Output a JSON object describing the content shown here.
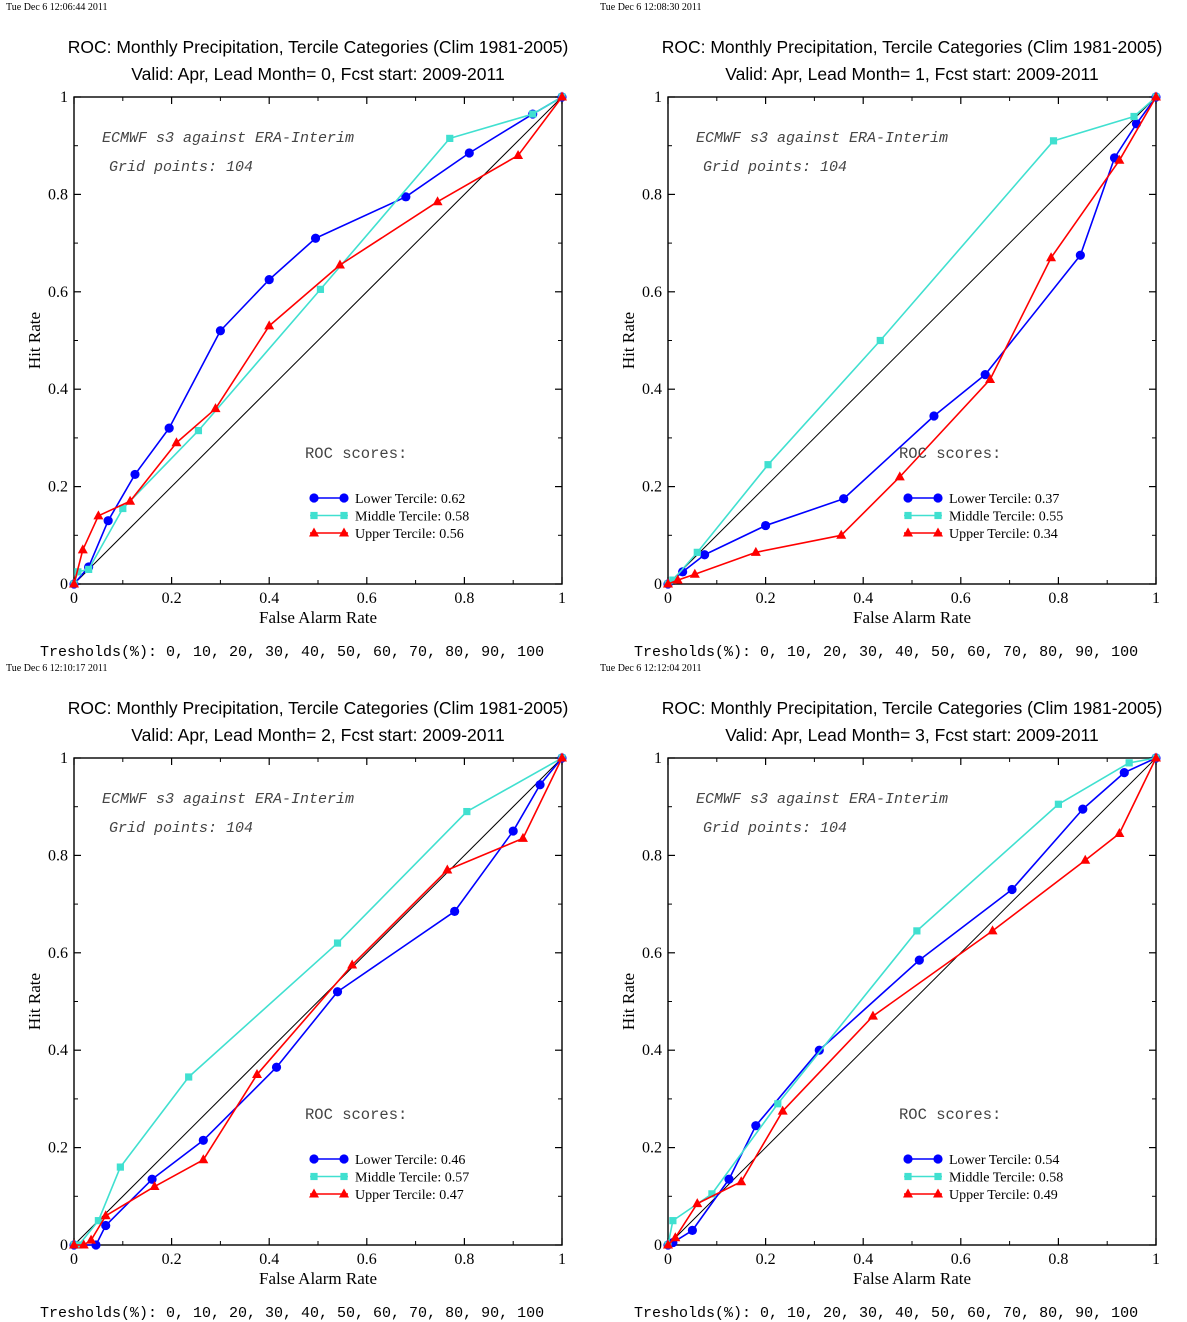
{
  "colors": {
    "lower": "#0000ff",
    "middle": "#40e0d0",
    "upper": "#ff0000",
    "diagonal": "#000000"
  },
  "chart_data": [
    {
      "type": "line",
      "timestamp": "Tue Dec  6 12:06:44 2011",
      "title": "ROC: Monthly Precipitation, Tercile Categories (Clim 1981-2005)",
      "subtitle": "Valid: Apr, Lead Month= 0, Fcst start: 2009-2011",
      "xlabel": "False Alarm Rate",
      "ylabel": "Hit Rate",
      "xlim": [
        0,
        1
      ],
      "ylim": [
        0,
        1
      ],
      "x_ticks": [
        "0",
        "0.2",
        "0.4",
        "0.6",
        "0.8",
        "1"
      ],
      "y_ticks": [
        "0",
        "0.2",
        "0.4",
        "0.6",
        "0.8",
        "1"
      ],
      "note1": "ECMWF s3 against ERA-Interim",
      "note2": "Grid points:  104",
      "scores_label": "ROC scores:",
      "thresholds": "Tresholds(%): 0, 10, 20, 30, 40, 50, 60, 70, 80, 90, 100",
      "series": [
        {
          "name": "Lower Tercile: 0.62",
          "marker": "circle",
          "color_key": "lower",
          "x": [
            0,
            0.03,
            0.07,
            0.125,
            0.195,
            0.3,
            0.4,
            0.495,
            0.68,
            0.81,
            0.94,
            1
          ],
          "y": [
            0,
            0.035,
            0.13,
            0.225,
            0.32,
            0.52,
            0.625,
            0.71,
            0.795,
            0.885,
            0.965,
            1
          ]
        },
        {
          "name": "Middle Tercile: 0.58",
          "marker": "square",
          "color_key": "middle",
          "x": [
            0,
            0.008,
            0.03,
            0.1,
            0.255,
            0.505,
            0.77,
            0.94,
            1
          ],
          "y": [
            0,
            0.025,
            0.03,
            0.155,
            0.315,
            0.605,
            0.915,
            0.965,
            1
          ]
        },
        {
          "name": "Upper Tercile: 0.56",
          "marker": "triangle",
          "color_key": "upper",
          "x": [
            0,
            0.018,
            0.05,
            0.115,
            0.21,
            0.29,
            0.4,
            0.545,
            0.745,
            0.91,
            1
          ],
          "y": [
            0,
            0.07,
            0.14,
            0.17,
            0.29,
            0.36,
            0.53,
            0.655,
            0.785,
            0.88,
            1
          ]
        }
      ]
    },
    {
      "type": "line",
      "timestamp": "Tue Dec  6 12:08:30 2011",
      "title": "ROC: Monthly Precipitation, Tercile Categories (Clim 1981-2005)",
      "subtitle": "Valid: Apr, Lead Month= 1, Fcst start: 2009-2011",
      "xlabel": "False Alarm Rate",
      "ylabel": "Hit Rate",
      "xlim": [
        0,
        1
      ],
      "ylim": [
        0,
        1
      ],
      "x_ticks": [
        "0",
        "0.2",
        "0.4",
        "0.6",
        "0.8",
        "1"
      ],
      "y_ticks": [
        "0",
        "0.2",
        "0.4",
        "0.6",
        "0.8",
        "1"
      ],
      "note1": "ECMWF s3 against ERA-Interim",
      "note2": "Grid points:  104",
      "scores_label": "ROC scores:",
      "thresholds": "Tresholds(%): 0, 10, 20, 30, 40, 50, 60, 70, 80, 90, 100",
      "series": [
        {
          "name": "Lower Tercile: 0.37",
          "marker": "circle",
          "color_key": "lower",
          "x": [
            0,
            0.03,
            0.075,
            0.2,
            0.36,
            0.545,
            0.65,
            0.845,
            0.915,
            0.96,
            1
          ],
          "y": [
            0,
            0.025,
            0.06,
            0.12,
            0.175,
            0.345,
            0.43,
            0.675,
            0.875,
            0.945,
            1
          ]
        },
        {
          "name": "Middle Tercile: 0.55",
          "marker": "square",
          "color_key": "middle",
          "x": [
            0,
            0.01,
            0.06,
            0.205,
            0.435,
            0.79,
            0.955,
            1
          ],
          "y": [
            0,
            0.008,
            0.065,
            0.245,
            0.5,
            0.91,
            0.96,
            1
          ],
          "tail": {
            "x": [
              0.955,
              0.975,
              1
            ],
            "y": [
              0.96,
              0.965,
              1
            ]
          }
        },
        {
          "name": "Upper Tercile: 0.34",
          "marker": "triangle",
          "color_key": "upper",
          "x": [
            0,
            0.02,
            0.055,
            0.18,
            0.355,
            0.475,
            0.66,
            0.785,
            0.925,
            1
          ],
          "y": [
            0,
            0.008,
            0.02,
            0.065,
            0.1,
            0.22,
            0.42,
            0.67,
            0.87,
            1
          ]
        }
      ]
    },
    {
      "type": "line",
      "timestamp": "Tue Dec  6 12:10:17 2011",
      "title": "ROC: Monthly Precipitation, Tercile Categories (Clim 1981-2005)",
      "subtitle": "Valid: Apr, Lead Month= 2, Fcst start: 2009-2011",
      "xlabel": "False Alarm Rate",
      "ylabel": "Hit Rate",
      "xlim": [
        0,
        1
      ],
      "ylim": [
        0,
        1
      ],
      "x_ticks": [
        "0",
        "0.2",
        "0.4",
        "0.6",
        "0.8",
        "1"
      ],
      "y_ticks": [
        "0",
        "0.2",
        "0.4",
        "0.6",
        "0.8",
        "1"
      ],
      "note1": "ECMWF s3 against ERA-Interim",
      "note2": "Grid points:  104",
      "scores_label": "ROC scores:",
      "thresholds": "Tresholds(%): 0, 10, 20, 30, 40, 50, 60, 70, 80, 90, 100",
      "series": [
        {
          "name": "Lower Tercile: 0.46",
          "marker": "circle",
          "color_key": "lower",
          "x": [
            0,
            0.045,
            0.065,
            0.16,
            0.265,
            0.415,
            0.54,
            0.78,
            0.9,
            0.955,
            1
          ],
          "y": [
            0,
            0.0,
            0.04,
            0.135,
            0.215,
            0.365,
            0.52,
            0.685,
            0.85,
            0.945,
            1
          ]
        },
        {
          "name": "Middle Tercile: 0.57",
          "marker": "square",
          "color_key": "middle",
          "x": [
            0,
            0.01,
            0.05,
            0.095,
            0.235,
            0.54,
            0.805,
            1
          ],
          "y": [
            0,
            0.0,
            0.05,
            0.16,
            0.345,
            0.62,
            0.89,
            1
          ]
        },
        {
          "name": "Upper Tercile: 0.47",
          "marker": "triangle",
          "color_key": "upper",
          "x": [
            0,
            0.02,
            0.035,
            0.065,
            0.165,
            0.265,
            0.375,
            0.57,
            0.765,
            0.92,
            1
          ],
          "y": [
            0,
            0.0,
            0.01,
            0.06,
            0.12,
            0.175,
            0.35,
            0.575,
            0.77,
            0.835,
            1
          ]
        }
      ]
    },
    {
      "type": "line",
      "timestamp": "Tue Dec  6 12:12:04 2011",
      "title": "ROC: Monthly Precipitation, Tercile Categories (Clim 1981-2005)",
      "subtitle": "Valid: Apr, Lead Month= 3, Fcst start: 2009-2011",
      "xlabel": "False Alarm Rate",
      "ylabel": "Hit Rate",
      "xlim": [
        0,
        1
      ],
      "ylim": [
        0,
        1
      ],
      "x_ticks": [
        "0",
        "0.2",
        "0.4",
        "0.6",
        "0.8",
        "1"
      ],
      "y_ticks": [
        "0",
        "0.2",
        "0.4",
        "0.6",
        "0.8",
        "1"
      ],
      "note1": "ECMWF s3 against ERA-Interim",
      "note2": "Grid points:  104",
      "scores_label": "ROC scores:",
      "thresholds": "Tresholds(%): 0, 10, 20, 30, 40, 50, 60, 70, 80, 90, 100",
      "series": [
        {
          "name": "Lower Tercile: 0.54",
          "marker": "circle",
          "color_key": "lower",
          "x": [
            0,
            0.01,
            0.05,
            0.125,
            0.18,
            0.31,
            0.515,
            0.705,
            0.85,
            0.935,
            1
          ],
          "y": [
            0,
            0.005,
            0.03,
            0.135,
            0.245,
            0.4,
            0.585,
            0.73,
            0.895,
            0.97,
            1
          ]
        },
        {
          "name": "Middle Tercile: 0.58",
          "marker": "square",
          "color_key": "middle",
          "x": [
            0,
            0.01,
            0.09,
            0.225,
            0.51,
            0.8,
            0.945,
            1
          ],
          "y": [
            0,
            0.05,
            0.105,
            0.29,
            0.645,
            0.905,
            0.99,
            1
          ]
        },
        {
          "name": "Upper Tercile: 0.49",
          "marker": "triangle",
          "color_key": "upper",
          "x": [
            0,
            0.015,
            0.06,
            0.15,
            0.235,
            0.42,
            0.665,
            0.855,
            0.925,
            1
          ],
          "y": [
            0,
            0.015,
            0.085,
            0.13,
            0.275,
            0.47,
            0.645,
            0.79,
            0.845,
            1
          ]
        }
      ]
    }
  ]
}
